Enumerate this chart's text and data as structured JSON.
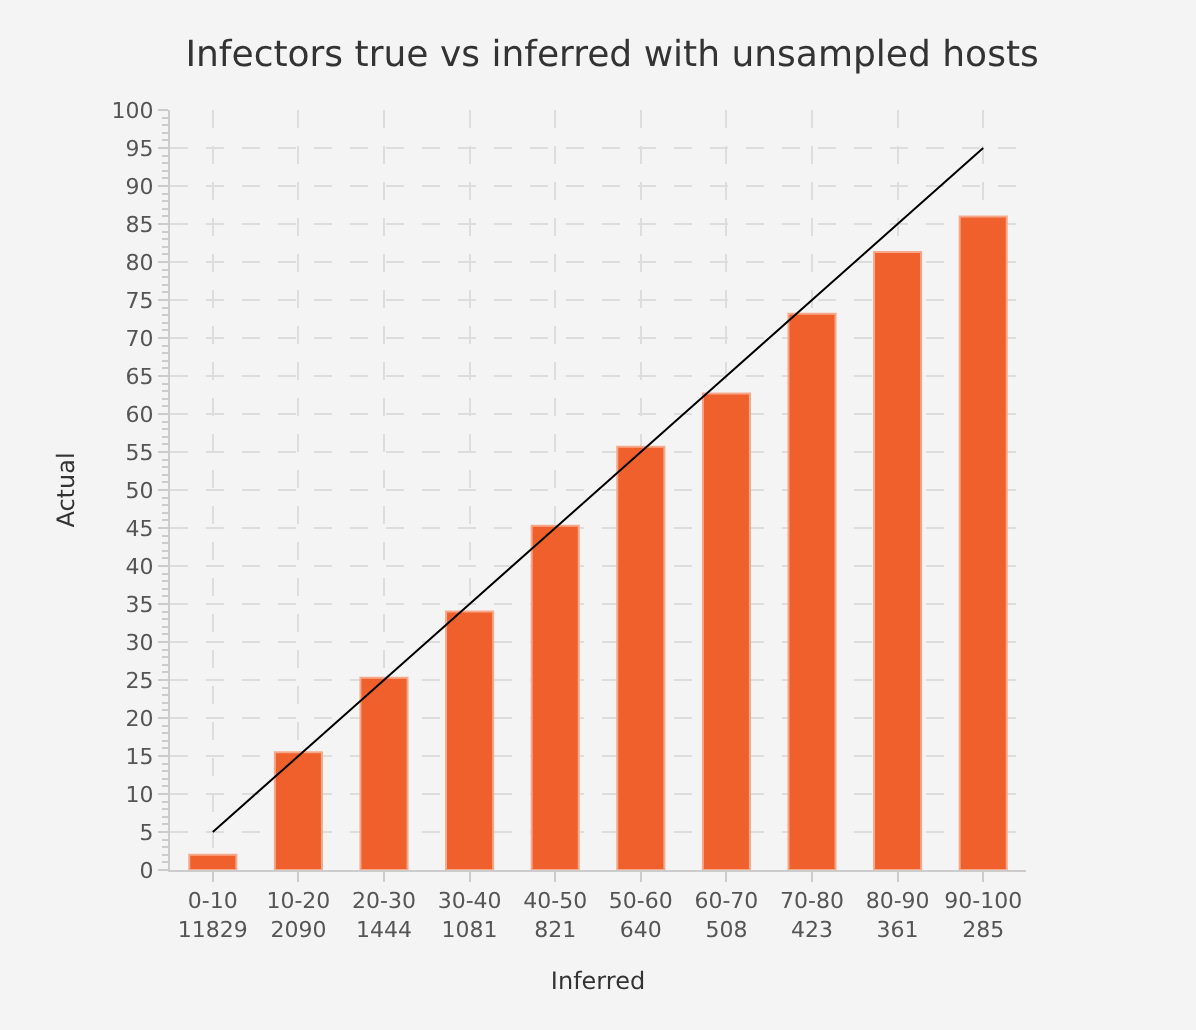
{
  "chart_data": {
    "type": "bar",
    "title": "Infectors true vs inferred with unsampled hosts",
    "xlabel": "Inferred",
    "ylabel": "Actual",
    "categories": [
      "0-10\n11829",
      "10-20\n2090",
      "20-30\n1444",
      "30-40\n1081",
      "40-50\n821",
      "50-60\n640",
      "60-70\n508",
      "70-80\n423",
      "80-90\n361",
      "90-100\n285"
    ],
    "series": [
      {
        "color": "#f0602c",
        "values": [
          2,
          15.5,
          25.3,
          34,
          45.3,
          55.7,
          62.7,
          73.2,
          81.3,
          86
        ]
      },
      {
        "type": "line",
        "color": "#000000",
        "values": [
          5,
          15,
          25,
          35,
          45,
          55,
          65,
          75,
          85,
          95
        ]
      }
    ],
    "ylim": [
      0,
      100
    ],
    "yticks": [
      0,
      5,
      10,
      15,
      20,
      25,
      30,
      35,
      40,
      45,
      50,
      55,
      60,
      65,
      70,
      75,
      80,
      85,
      90,
      95,
      100
    ],
    "grid": true,
    "line_style": "solid",
    "marker": "none"
  }
}
